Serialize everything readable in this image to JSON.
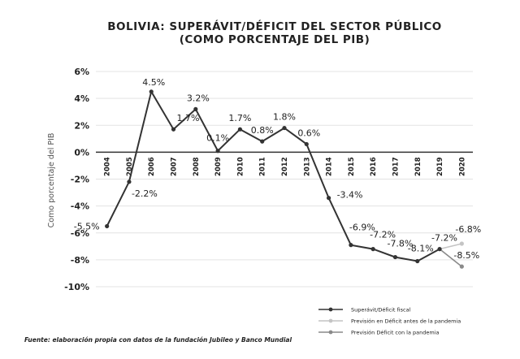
{
  "chart_data": {
    "type": "line",
    "title": "BOLIVIA: SUPERÁVIT/DÉFICIT DEL SECTOR PÚBLICO",
    "subtitle": "(COMO PORCENTAJE DEL PIB)",
    "ylabel": "Como porcentaje del PIB",
    "xlabel": "",
    "ylim": [
      -10,
      6
    ],
    "yticks": [
      6,
      4,
      2,
      0,
      -2,
      -4,
      -6,
      -8,
      -10
    ],
    "ytick_labels": [
      "6%",
      "4%",
      "2%",
      "0%",
      "-2%",
      "-4%",
      "-6%",
      "-8%",
      "-10%"
    ],
    "grid": true,
    "legend_position": "bottom-right",
    "x": [
      "2004",
      "2005",
      "2006",
      "2007",
      "2008",
      "2009",
      "2010",
      "2011",
      "2012",
      "2013",
      "2014",
      "2015",
      "2016",
      "2017",
      "2018",
      "2019",
      "2020"
    ],
    "series": [
      {
        "name": "Superávit/Déficit fiscal",
        "color": "#333333",
        "x": [
          "2004",
          "2005",
          "2006",
          "2007",
          "2008",
          "2009",
          "2010",
          "2011",
          "2012",
          "2013",
          "2014",
          "2015",
          "2016",
          "2017",
          "2018",
          "2019"
        ],
        "values": [
          -5.5,
          -2.2,
          4.5,
          1.7,
          3.2,
          0.1,
          1.7,
          0.8,
          1.8,
          0.6,
          -3.4,
          -6.9,
          -7.2,
          -7.8,
          -8.1,
          -7.2
        ],
        "labels": [
          "-5.5%",
          "-2.2%",
          "4.5%",
          "1.7%",
          "3.2%",
          "0.1%",
          "1.7%",
          "0.8%",
          "1.8%",
          "0.6%",
          "-3.4%",
          "-6.9%",
          "-7.2%",
          "-7.8%",
          "-8.1%",
          "-7.2%"
        ]
      },
      {
        "name": "Previsión en Déficit antes de la pandemia",
        "color": "#c4c4c4",
        "x": [
          "2019",
          "2020"
        ],
        "values": [
          -7.2,
          -6.8
        ],
        "labels": [
          "",
          "-6.8%"
        ]
      },
      {
        "name": "Previsión Déficit con la pandemia",
        "color": "#8a8a8a",
        "x": [
          "2019",
          "2020"
        ],
        "values": [
          -7.2,
          -8.5
        ],
        "labels": [
          "",
          "-8.5%"
        ]
      }
    ]
  },
  "source": "Fuente: elaboración propia con datos de la fundación Jubileo y Banco  Mundial"
}
